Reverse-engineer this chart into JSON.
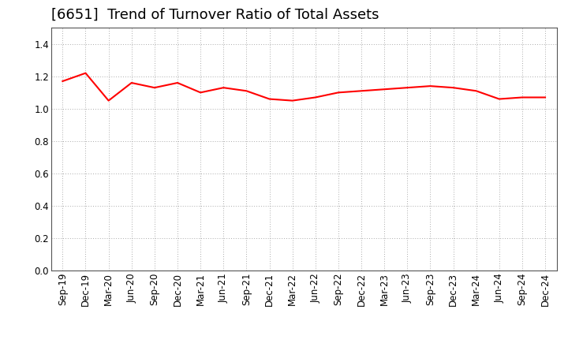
{
  "title": "[6651]  Trend of Turnover Ratio of Total Assets",
  "x_labels": [
    "Sep-19",
    "Dec-19",
    "Mar-20",
    "Jun-20",
    "Sep-20",
    "Dec-20",
    "Mar-21",
    "Jun-21",
    "Sep-21",
    "Dec-21",
    "Mar-22",
    "Jun-22",
    "Sep-22",
    "Dec-22",
    "Mar-23",
    "Jun-23",
    "Sep-23",
    "Dec-23",
    "Mar-24",
    "Jun-24",
    "Sep-24",
    "Dec-24"
  ],
  "values": [
    1.17,
    1.22,
    1.05,
    1.16,
    1.13,
    1.16,
    1.1,
    1.13,
    1.11,
    1.06,
    1.05,
    1.07,
    1.1,
    1.11,
    1.12,
    1.13,
    1.14,
    1.13,
    1.11,
    1.06,
    1.07,
    1.07
  ],
  "line_color": "#FF0000",
  "line_width": 1.5,
  "ylim": [
    0.0,
    1.5
  ],
  "yticks": [
    0.0,
    0.2,
    0.4,
    0.6,
    0.8,
    1.0,
    1.2,
    1.4
  ],
  "background_color": "#ffffff",
  "plot_bg_color": "#ffffff",
  "grid_color": "#aaaaaa",
  "title_fontsize": 13,
  "tick_fontsize": 8.5
}
